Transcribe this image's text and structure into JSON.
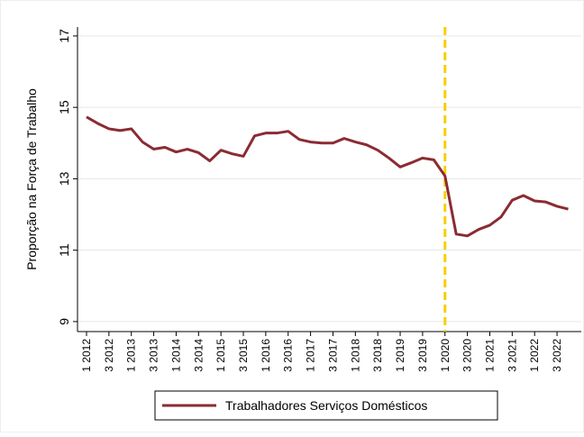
{
  "chart_data": {
    "type": "line",
    "y_label": "Proporção na Força de Trabalho",
    "categories": [
      "1 2012",
      null,
      "3 2012",
      null,
      "1 2013",
      null,
      "3 2013",
      null,
      "1 2014",
      null,
      "3 2014",
      null,
      "1 2015",
      null,
      "3 2015",
      null,
      "1 2016",
      null,
      "3 2016",
      null,
      "1 2017",
      null,
      "3 2017",
      null,
      "1 2018",
      null,
      "3 2018",
      null,
      "1 2019",
      null,
      "3 2019",
      null,
      "1 2020",
      null,
      "3 2020",
      null,
      "1 2021",
      null,
      "3 2021",
      null,
      "1 2022",
      null,
      "3 2022",
      null
    ],
    "series": [
      {
        "name": "Trabalhadores Serviços Domésticos",
        "color": "#8b2b33",
        "values": [
          14.73,
          14.55,
          14.4,
          14.35,
          14.4,
          14.03,
          13.83,
          13.88,
          13.75,
          13.83,
          13.73,
          13.5,
          13.8,
          13.7,
          13.63,
          14.2,
          14.28,
          14.28,
          14.33,
          14.1,
          14.03,
          14.0,
          14.0,
          14.13,
          14.03,
          13.95,
          13.8,
          13.58,
          13.33,
          13.45,
          13.58,
          13.53,
          13.08,
          11.45,
          11.4,
          11.58,
          11.7,
          11.93,
          12.4,
          12.53,
          12.38,
          12.35,
          12.23,
          12.15
        ]
      }
    ],
    "ylim": [
      8.72,
      17.25
    ],
    "yticks": [
      9,
      11,
      13,
      15,
      17
    ],
    "grid": true,
    "vline_at": "1 2020",
    "vline_color": "#f5d000",
    "legend": "bottom"
  }
}
